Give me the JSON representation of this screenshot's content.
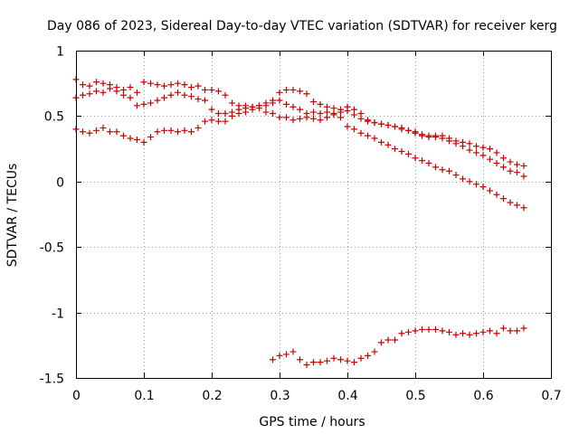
{
  "chart_data": {
    "type": "scatter",
    "title": "Day 086 of 2023, Sidereal Day-to-day VTEC variation (SDTVAR) for receiver kerg",
    "xlabel": "GPS time / hours",
    "ylabel": "SDTVAR / TECUs",
    "xlim": [
      0,
      0.7
    ],
    "ylim": [
      -1.5,
      1
    ],
    "xticks": [
      0,
      0.1,
      0.2,
      0.3,
      0.4,
      0.5,
      0.6,
      0.7
    ],
    "xtick_labels": [
      "0",
      "0.1",
      "0.2",
      "0.3",
      "0.4",
      "0.5",
      "0.6",
      "0.7"
    ],
    "yticks": [
      1,
      0.5,
      0,
      -0.5,
      -1,
      -1.5
    ],
    "ytick_labels": [
      "1",
      "0.5",
      "0",
      "-0.5",
      "-1",
      "-1.5"
    ],
    "grid": true,
    "marker": "+",
    "color": "#cc0000",
    "series": [
      {
        "name": "series-a",
        "points": [
          [
            0.0,
            0.78
          ],
          [
            0.01,
            0.74
          ],
          [
            0.02,
            0.73
          ],
          [
            0.03,
            0.76
          ],
          [
            0.04,
            0.75
          ],
          [
            0.05,
            0.74
          ],
          [
            0.06,
            0.72
          ],
          [
            0.07,
            0.7
          ],
          [
            0.08,
            0.72
          ],
          [
            0.09,
            0.68
          ],
          [
            0.1,
            0.76
          ],
          [
            0.11,
            0.75
          ],
          [
            0.12,
            0.74
          ],
          [
            0.13,
            0.73
          ],
          [
            0.14,
            0.74
          ],
          [
            0.15,
            0.75
          ],
          [
            0.16,
            0.74
          ],
          [
            0.17,
            0.72
          ],
          [
            0.18,
            0.73
          ],
          [
            0.19,
            0.7
          ],
          [
            0.2,
            0.7
          ],
          [
            0.21,
            0.69
          ],
          [
            0.22,
            0.66
          ],
          [
            0.23,
            0.6
          ],
          [
            0.24,
            0.58
          ],
          [
            0.25,
            0.58
          ],
          [
            0.26,
            0.57
          ],
          [
            0.27,
            0.58
          ],
          [
            0.28,
            0.6
          ],
          [
            0.29,
            0.62
          ],
          [
            0.3,
            0.68
          ],
          [
            0.31,
            0.7
          ],
          [
            0.32,
            0.7
          ],
          [
            0.33,
            0.69
          ],
          [
            0.34,
            0.67
          ],
          [
            0.35,
            0.61
          ],
          [
            0.36,
            0.59
          ],
          [
            0.37,
            0.57
          ],
          [
            0.38,
            0.56
          ],
          [
            0.39,
            0.55
          ],
          [
            0.4,
            0.54
          ],
          [
            0.41,
            0.51
          ],
          [
            0.42,
            0.48
          ],
          [
            0.43,
            0.46
          ],
          [
            0.44,
            0.45
          ],
          [
            0.45,
            0.44
          ],
          [
            0.46,
            0.43
          ],
          [
            0.47,
            0.42
          ],
          [
            0.48,
            0.4
          ],
          [
            0.49,
            0.39
          ],
          [
            0.5,
            0.37
          ],
          [
            0.51,
            0.35
          ],
          [
            0.52,
            0.34
          ],
          [
            0.53,
            0.35
          ],
          [
            0.54,
            0.33
          ],
          [
            0.55,
            0.31
          ],
          [
            0.56,
            0.29
          ],
          [
            0.57,
            0.27
          ],
          [
            0.58,
            0.24
          ],
          [
            0.59,
            0.22
          ],
          [
            0.6,
            0.2
          ],
          [
            0.61,
            0.17
          ],
          [
            0.62,
            0.14
          ],
          [
            0.63,
            0.11
          ],
          [
            0.64,
            0.08
          ],
          [
            0.65,
            0.07
          ],
          [
            0.66,
            0.04
          ]
        ]
      },
      {
        "name": "series-b",
        "points": [
          [
            0.0,
            0.64
          ],
          [
            0.01,
            0.66
          ],
          [
            0.02,
            0.67
          ],
          [
            0.03,
            0.69
          ],
          [
            0.04,
            0.68
          ],
          [
            0.05,
            0.71
          ],
          [
            0.06,
            0.69
          ],
          [
            0.07,
            0.66
          ],
          [
            0.08,
            0.64
          ],
          [
            0.09,
            0.58
          ],
          [
            0.1,
            0.59
          ],
          [
            0.11,
            0.6
          ],
          [
            0.12,
            0.62
          ],
          [
            0.13,
            0.64
          ],
          [
            0.14,
            0.66
          ],
          [
            0.15,
            0.68
          ],
          [
            0.16,
            0.66
          ],
          [
            0.17,
            0.65
          ],
          [
            0.18,
            0.63
          ],
          [
            0.19,
            0.62
          ],
          [
            0.2,
            0.55
          ],
          [
            0.21,
            0.52
          ],
          [
            0.22,
            0.52
          ],
          [
            0.23,
            0.53
          ],
          [
            0.24,
            0.55
          ],
          [
            0.25,
            0.56
          ],
          [
            0.26,
            0.57
          ],
          [
            0.27,
            0.58
          ],
          [
            0.28,
            0.53
          ],
          [
            0.29,
            0.52
          ],
          [
            0.3,
            0.49
          ],
          [
            0.31,
            0.49
          ],
          [
            0.32,
            0.47
          ],
          [
            0.33,
            0.48
          ],
          [
            0.34,
            0.49
          ],
          [
            0.35,
            0.48
          ],
          [
            0.36,
            0.47
          ],
          [
            0.37,
            0.49
          ],
          [
            0.38,
            0.52
          ],
          [
            0.39,
            0.53
          ],
          [
            0.4,
            0.57
          ],
          [
            0.41,
            0.55
          ],
          [
            0.42,
            0.52
          ],
          [
            0.43,
            0.47
          ],
          [
            0.44,
            0.45
          ],
          [
            0.45,
            0.44
          ],
          [
            0.46,
            0.43
          ],
          [
            0.47,
            0.42
          ],
          [
            0.48,
            0.41
          ],
          [
            0.49,
            0.39
          ],
          [
            0.5,
            0.38
          ],
          [
            0.51,
            0.36
          ],
          [
            0.52,
            0.35
          ],
          [
            0.53,
            0.34
          ],
          [
            0.54,
            0.35
          ],
          [
            0.55,
            0.33
          ],
          [
            0.56,
            0.31
          ],
          [
            0.57,
            0.3
          ],
          [
            0.58,
            0.29
          ],
          [
            0.59,
            0.27
          ],
          [
            0.6,
            0.26
          ],
          [
            0.61,
            0.25
          ],
          [
            0.62,
            0.22
          ],
          [
            0.63,
            0.18
          ],
          [
            0.64,
            0.15
          ],
          [
            0.65,
            0.13
          ],
          [
            0.66,
            0.12
          ]
        ]
      },
      {
        "name": "series-c",
        "points": [
          [
            0.0,
            0.4
          ],
          [
            0.01,
            0.38
          ],
          [
            0.02,
            0.37
          ],
          [
            0.03,
            0.39
          ],
          [
            0.04,
            0.41
          ],
          [
            0.05,
            0.38
          ],
          [
            0.06,
            0.38
          ],
          [
            0.07,
            0.35
          ],
          [
            0.08,
            0.33
          ],
          [
            0.09,
            0.32
          ],
          [
            0.1,
            0.3
          ],
          [
            0.11,
            0.34
          ],
          [
            0.12,
            0.38
          ],
          [
            0.13,
            0.39
          ],
          [
            0.14,
            0.39
          ],
          [
            0.15,
            0.38
          ],
          [
            0.16,
            0.39
          ],
          [
            0.17,
            0.38
          ],
          [
            0.18,
            0.41
          ],
          [
            0.19,
            0.46
          ],
          [
            0.2,
            0.47
          ],
          [
            0.21,
            0.46
          ],
          [
            0.22,
            0.46
          ],
          [
            0.23,
            0.5
          ],
          [
            0.24,
            0.52
          ],
          [
            0.25,
            0.53
          ],
          [
            0.26,
            0.55
          ],
          [
            0.27,
            0.56
          ],
          [
            0.28,
            0.58
          ],
          [
            0.29,
            0.6
          ],
          [
            0.3,
            0.62
          ],
          [
            0.31,
            0.59
          ],
          [
            0.32,
            0.57
          ],
          [
            0.33,
            0.55
          ],
          [
            0.34,
            0.52
          ],
          [
            0.35,
            0.53
          ],
          [
            0.36,
            0.52
          ],
          [
            0.37,
            0.53
          ],
          [
            0.38,
            0.51
          ],
          [
            0.39,
            0.49
          ],
          [
            0.4,
            0.42
          ],
          [
            0.41,
            0.4
          ],
          [
            0.42,
            0.37
          ],
          [
            0.43,
            0.35
          ],
          [
            0.44,
            0.33
          ],
          [
            0.45,
            0.3
          ],
          [
            0.46,
            0.28
          ],
          [
            0.47,
            0.25
          ],
          [
            0.48,
            0.23
          ],
          [
            0.49,
            0.21
          ],
          [
            0.5,
            0.18
          ],
          [
            0.51,
            0.16
          ],
          [
            0.52,
            0.14
          ],
          [
            0.53,
            0.11
          ],
          [
            0.54,
            0.09
          ],
          [
            0.55,
            0.08
          ],
          [
            0.56,
            0.05
          ],
          [
            0.57,
            0.02
          ],
          [
            0.58,
            0.0
          ],
          [
            0.59,
            -0.02
          ],
          [
            0.6,
            -0.04
          ],
          [
            0.61,
            -0.07
          ],
          [
            0.62,
            -0.1
          ],
          [
            0.63,
            -0.13
          ],
          [
            0.64,
            -0.16
          ],
          [
            0.65,
            -0.18
          ],
          [
            0.66,
            -0.2
          ]
        ]
      },
      {
        "name": "series-d",
        "points": [
          [
            0.29,
            -1.36
          ],
          [
            0.3,
            -1.33
          ],
          [
            0.31,
            -1.32
          ],
          [
            0.32,
            -1.3
          ],
          [
            0.33,
            -1.36
          ],
          [
            0.34,
            -1.4
          ],
          [
            0.35,
            -1.38
          ],
          [
            0.36,
            -1.38
          ],
          [
            0.37,
            -1.37
          ],
          [
            0.38,
            -1.35
          ],
          [
            0.39,
            -1.36
          ],
          [
            0.4,
            -1.37
          ],
          [
            0.41,
            -1.38
          ],
          [
            0.42,
            -1.35
          ],
          [
            0.43,
            -1.33
          ],
          [
            0.44,
            -1.3
          ],
          [
            0.45,
            -1.23
          ],
          [
            0.46,
            -1.21
          ],
          [
            0.47,
            -1.21
          ],
          [
            0.48,
            -1.16
          ],
          [
            0.49,
            -1.15
          ],
          [
            0.5,
            -1.14
          ],
          [
            0.51,
            -1.13
          ],
          [
            0.52,
            -1.13
          ],
          [
            0.53,
            -1.13
          ],
          [
            0.54,
            -1.14
          ],
          [
            0.55,
            -1.15
          ],
          [
            0.56,
            -1.17
          ],
          [
            0.57,
            -1.16
          ],
          [
            0.58,
            -1.17
          ],
          [
            0.59,
            -1.16
          ],
          [
            0.6,
            -1.15
          ],
          [
            0.61,
            -1.14
          ],
          [
            0.62,
            -1.16
          ],
          [
            0.63,
            -1.12
          ],
          [
            0.64,
            -1.14
          ],
          [
            0.65,
            -1.14
          ],
          [
            0.66,
            -1.12
          ]
        ]
      }
    ]
  }
}
